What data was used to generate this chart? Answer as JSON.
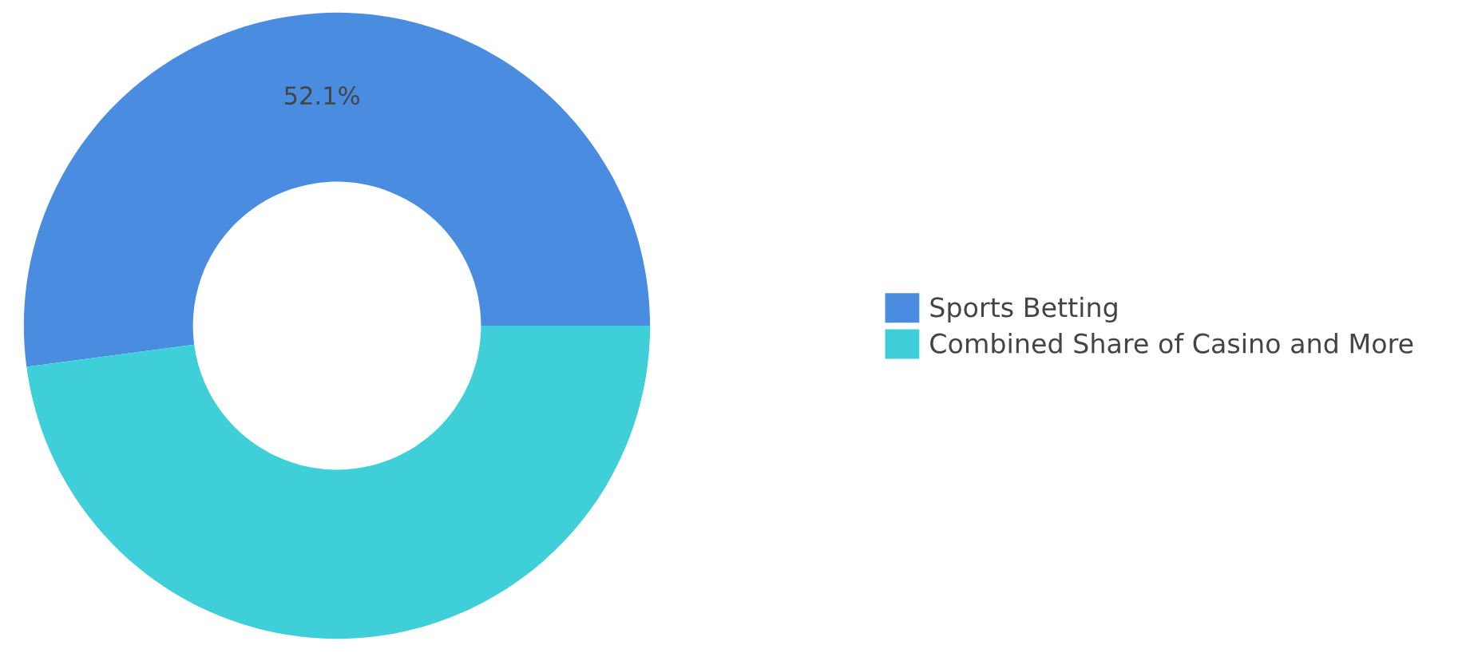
{
  "chart_data": {
    "type": "donut",
    "categories": [
      "Sports Betting",
      "Combined Share of Casino and More"
    ],
    "values": [
      52.1,
      47.9
    ],
    "colors": [
      "#4a8de0",
      "#3ecfd8"
    ],
    "value_labels": [
      "52.1%",
      null
    ],
    "legend": "right"
  }
}
